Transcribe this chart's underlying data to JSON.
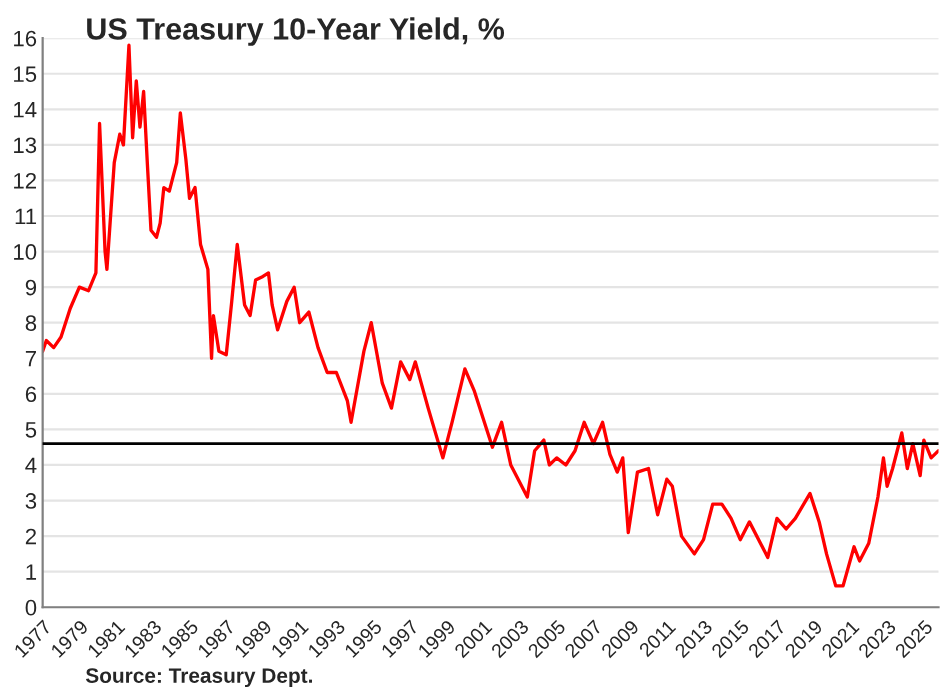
{
  "chart_data": {
    "type": "line",
    "title": "US Treasury 10-Year Yield, %",
    "x": [
      1977.0,
      1977.2,
      1977.6,
      1978.0,
      1978.5,
      1979.0,
      1979.5,
      1979.9,
      1980.1,
      1980.4,
      1980.5,
      1980.9,
      1981.2,
      1981.4,
      1981.7,
      1981.9,
      1982.1,
      1982.3,
      1982.5,
      1982.7,
      1982.9,
      1983.2,
      1983.4,
      1983.6,
      1983.9,
      1984.3,
      1984.5,
      1984.8,
      1985.0,
      1985.3,
      1985.6,
      1986.0,
      1986.2,
      1986.3,
      1986.6,
      1987.0,
      1987.3,
      1987.6,
      1988.0,
      1988.3,
      1988.6,
      1989.0,
      1989.3,
      1989.5,
      1989.8,
      1990.3,
      1990.7,
      1991.0,
      1991.5,
      1992.0,
      1992.5,
      1993.0,
      1993.6,
      1993.8,
      1994.5,
      1994.9,
      1995.5,
      1996.0,
      1996.5,
      1997.0,
      1997.3,
      1998.0,
      1998.8,
      1999.3,
      2000.0,
      2000.5,
      2001.0,
      2001.5,
      2002.0,
      2002.5,
      2003.4,
      2003.8,
      2004.3,
      2004.6,
      2005.0,
      2005.5,
      2006.0,
      2006.5,
      2007.0,
      2007.5,
      2007.9,
      2008.3,
      2008.6,
      2008.9,
      2009.4,
      2010.0,
      2010.5,
      2011.0,
      2011.3,
      2011.8,
      2012.5,
      2013.0,
      2013.5,
      2014.0,
      2014.5,
      2015.0,
      2015.5,
      2016.5,
      2017.0,
      2017.5,
      2018.0,
      2018.8,
      2019.3,
      2019.7,
      2020.2,
      2020.6,
      2021.2,
      2021.5,
      2022.0,
      2022.5,
      2022.8,
      2023.0,
      2023.3,
      2023.8,
      2024.1,
      2024.4,
      2024.8,
      2025.0,
      2025.4,
      2025.8
    ],
    "series": [
      {
        "color": "#ff0000",
        "values": [
          7.2,
          7.5,
          7.3,
          7.6,
          8.4,
          9.0,
          8.9,
          9.4,
          13.6,
          10.0,
          9.5,
          12.5,
          13.3,
          13.0,
          15.8,
          13.2,
          14.8,
          13.5,
          14.5,
          12.5,
          10.6,
          10.4,
          10.8,
          11.8,
          11.7,
          12.5,
          13.9,
          12.6,
          11.5,
          11.8,
          10.2,
          9.5,
          7.0,
          8.2,
          7.2,
          7.1,
          8.6,
          10.2,
          8.5,
          8.2,
          9.2,
          9.3,
          9.4,
          8.5,
          7.8,
          8.6,
          9.0,
          8.0,
          8.3,
          7.3,
          6.6,
          6.6,
          5.8,
          5.2,
          7.2,
          8.0,
          6.3,
          5.6,
          6.9,
          6.4,
          6.9,
          5.6,
          4.2,
          5.2,
          6.7,
          6.1,
          5.3,
          4.5,
          5.2,
          4.0,
          3.1,
          4.4,
          4.7,
          4.0,
          4.2,
          4.0,
          4.4,
          5.2,
          4.6,
          5.2,
          4.3,
          3.8,
          4.2,
          2.1,
          3.8,
          3.9,
          2.6,
          3.6,
          3.4,
          2.0,
          1.5,
          1.9,
          2.9,
          2.9,
          2.5,
          1.9,
          2.4,
          1.4,
          2.5,
          2.2,
          2.5,
          3.2,
          2.4,
          1.5,
          0.6,
          0.6,
          1.7,
          1.3,
          1.8,
          3.1,
          4.2,
          3.4,
          3.9,
          4.9,
          3.9,
          4.6,
          3.7,
          4.7,
          4.2,
          4.4
        ]
      }
    ],
    "xlim": [
      1977,
      2025.8
    ],
    "xticks": [
      {
        "value": 1977,
        "label": "1977"
      },
      {
        "value": 1979,
        "label": "1979"
      },
      {
        "value": 1981,
        "label": "1981"
      },
      {
        "value": 1983,
        "label": "1983"
      },
      {
        "value": 1985,
        "label": "1985"
      },
      {
        "value": 1987,
        "label": "1987"
      },
      {
        "value": 1989,
        "label": "1989"
      },
      {
        "value": 1991,
        "label": "1991"
      },
      {
        "value": 1993,
        "label": "1993"
      },
      {
        "value": 1995,
        "label": "1995"
      },
      {
        "value": 1997,
        "label": "1997"
      },
      {
        "value": 1999,
        "label": "1999"
      },
      {
        "value": 2001,
        "label": "2001"
      },
      {
        "value": 2003,
        "label": "2003"
      },
      {
        "value": 2005,
        "label": "2005"
      },
      {
        "value": 2007,
        "label": "2007"
      },
      {
        "value": 2009,
        "label": "2009"
      },
      {
        "value": 2011,
        "label": "2011"
      },
      {
        "value": 2013,
        "label": "2013"
      },
      {
        "value": 2015,
        "label": "2015"
      },
      {
        "value": 2017,
        "label": "2017"
      },
      {
        "value": 2019,
        "label": "2019"
      },
      {
        "value": 2021,
        "label": "2021"
      },
      {
        "value": 2023,
        "label": "2023"
      },
      {
        "value": 2025,
        "label": "2025"
      }
    ],
    "ylim": [
      0,
      16
    ],
    "yticks": [
      0,
      1,
      2,
      3,
      4,
      5,
      6,
      7,
      8,
      9,
      10,
      11,
      12,
      13,
      14,
      15,
      16
    ],
    "grid": "y",
    "ref_lines": [
      {
        "axis": "y",
        "value": 4.6,
        "color": "#000000"
      }
    ],
    "annotations": [
      "Source: Treasury Dept."
    ]
  }
}
